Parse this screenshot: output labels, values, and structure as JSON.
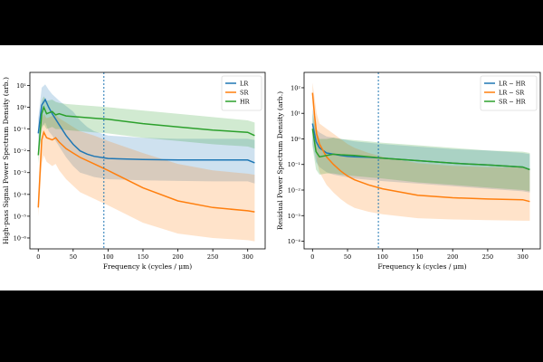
{
  "chart_data": [
    {
      "type": "line",
      "log_y": true,
      "ylabel": "High-pass Signal Power Spectrum Density (arb.)",
      "xlabel": "Frequency k (cycles / μm)",
      "xlim": [
        -12,
        325
      ],
      "ylim_exponent": [
        -6.5,
        1.6
      ],
      "x_ticks": [
        "0",
        "50",
        "100",
        "150",
        "200",
        "250",
        "300"
      ],
      "y_tick_exponents": [
        1,
        0,
        -1,
        -2,
        -3,
        -4,
        -5,
        -6
      ],
      "vline_x": 94,
      "legend": "top-right",
      "series": [
        {
          "name": "LR",
          "color": "#1f77b4",
          "x": [
            0,
            5,
            10,
            15,
            20,
            30,
            40,
            50,
            60,
            70,
            80,
            100,
            150,
            200,
            250,
            300,
            310
          ],
          "log_mean": [
            -1.2,
            0.1,
            0.35,
            0.0,
            -0.3,
            -0.8,
            -1.3,
            -1.7,
            -2.0,
            -2.15,
            -2.25,
            -2.35,
            -2.4,
            -2.42,
            -2.42,
            -2.42,
            -2.55
          ],
          "log_low": [
            -2.0,
            -0.9,
            -0.7,
            -1.1,
            -1.3,
            -1.8,
            -2.3,
            -2.7,
            -3.0,
            -3.1,
            -3.2,
            -3.3,
            -3.35,
            -3.38,
            -3.4,
            -3.4,
            -3.5
          ],
          "log_high": [
            -0.5,
            0.9,
            1.05,
            0.8,
            0.6,
            0.3,
            0.05,
            -0.2,
            -0.6,
            -0.9,
            -1.1,
            -1.3,
            -1.4,
            -1.45,
            -1.45,
            -1.45,
            -1.5
          ]
        },
        {
          "name": "SR",
          "color": "#ff7f0e",
          "x": [
            0,
            5,
            8,
            12,
            20,
            25,
            30,
            40,
            50,
            60,
            80,
            100,
            150,
            200,
            250,
            300,
            310
          ],
          "log_mean": [
            -4.6,
            -1.5,
            -1.15,
            -1.4,
            -1.5,
            -1.4,
            -1.6,
            -1.9,
            -2.1,
            -2.3,
            -2.6,
            -2.9,
            -3.7,
            -4.3,
            -4.6,
            -4.75,
            -4.8
          ],
          "log_low": [
            -5.0,
            -2.6,
            -2.2,
            -2.5,
            -2.7,
            -2.6,
            -2.9,
            -3.3,
            -3.6,
            -3.9,
            -4.2,
            -4.5,
            -5.3,
            -5.8,
            -6.0,
            -6.1,
            -6.15
          ],
          "log_high": [
            -4.0,
            -0.6,
            -0.3,
            -0.5,
            -0.4,
            -0.35,
            -0.5,
            -0.7,
            -0.9,
            -1.1,
            -1.3,
            -1.55,
            -2.1,
            -2.6,
            -2.9,
            -3.05,
            -3.1
          ]
        },
        {
          "name": "HR",
          "color": "#2ca02c",
          "x": [
            0,
            5,
            8,
            12,
            20,
            25,
            30,
            40,
            60,
            80,
            100,
            150,
            200,
            250,
            300,
            310
          ],
          "log_mean": [
            -2.2,
            -0.3,
            0.0,
            -0.3,
            -0.2,
            -0.35,
            -0.3,
            -0.4,
            -0.45,
            -0.5,
            -0.55,
            -0.75,
            -0.9,
            -1.05,
            -1.15,
            -1.3
          ],
          "log_low": [
            -2.6,
            -1.0,
            -0.8,
            -1.0,
            -0.9,
            -1.0,
            -1.0,
            -1.05,
            -1.1,
            -1.15,
            -1.2,
            -1.4,
            -1.55,
            -1.7,
            -1.8,
            -1.9
          ],
          "log_high": [
            -1.8,
            0.3,
            0.5,
            0.3,
            0.35,
            0.25,
            0.2,
            0.15,
            0.1,
            0.05,
            0.0,
            -0.15,
            -0.3,
            -0.45,
            -0.6,
            -0.7
          ]
        }
      ]
    },
    {
      "type": "line",
      "log_y": true,
      "ylabel": "Residual Power Spectrum Density (arb.)",
      "xlabel": "Frequency k (cycles / μm)",
      "xlim": [
        -12,
        325
      ],
      "ylim_exponent": [
        -4.3,
        2.6
      ],
      "x_ticks": [
        "0",
        "50",
        "100",
        "150",
        "200",
        "250",
        "300"
      ],
      "y_tick_exponents": [
        2,
        1,
        0,
        -1,
        -2,
        -3,
        -4
      ],
      "vline_x": 94,
      "legend": "top-right",
      "series": [
        {
          "name": "LR − HR",
          "color": "#1f77b4",
          "x": [
            0,
            5,
            10,
            20,
            30,
            40,
            50,
            60,
            80,
            100,
            150,
            200,
            250,
            300,
            310
          ],
          "log_mean": [
            0.6,
            -0.1,
            -0.35,
            -0.55,
            -0.6,
            -0.65,
            -0.68,
            -0.7,
            -0.72,
            -0.75,
            -0.85,
            -0.95,
            -1.02,
            -1.1,
            -1.2
          ],
          "log_low": [
            -0.2,
            -0.9,
            -1.1,
            -1.3,
            -1.4,
            -1.45,
            -1.5,
            -1.55,
            -1.6,
            -1.65,
            -1.75,
            -1.85,
            -1.95,
            -2.05,
            -2.1
          ],
          "log_high": [
            1.2,
            0.4,
            0.25,
            0.1,
            0.05,
            0.0,
            -0.05,
            -0.1,
            -0.15,
            -0.2,
            -0.3,
            -0.4,
            -0.45,
            -0.55,
            -0.6
          ]
        },
        {
          "name": "LR − SR",
          "color": "#ff7f0e",
          "x": [
            0,
            3,
            6,
            10,
            20,
            30,
            40,
            50,
            60,
            80,
            100,
            150,
            200,
            250,
            300,
            310
          ],
          "log_mean": [
            1.8,
            0.9,
            0.2,
            -0.2,
            -0.7,
            -1.0,
            -1.25,
            -1.45,
            -1.6,
            -1.8,
            -1.95,
            -2.2,
            -2.3,
            -2.35,
            -2.38,
            -2.45
          ],
          "log_low": [
            1.4,
            0.2,
            -0.8,
            -1.3,
            -1.8,
            -2.1,
            -2.35,
            -2.55,
            -2.7,
            -2.85,
            -2.95,
            -3.1,
            -3.15,
            -3.18,
            -3.2,
            -3.2
          ],
          "log_high": [
            2.2,
            1.6,
            1.0,
            0.6,
            0.4,
            0.2,
            0.0,
            -0.2,
            -0.35,
            -0.55,
            -0.7,
            -0.95,
            -1.05,
            -1.1,
            -1.12,
            -1.15
          ]
        },
        {
          "name": "SR − HR",
          "color": "#2ca02c",
          "x": [
            0,
            5,
            10,
            20,
            30,
            40,
            60,
            80,
            100,
            150,
            200,
            250,
            300,
            310
          ],
          "log_mean": [
            0.4,
            -0.5,
            -0.7,
            -0.65,
            -0.6,
            -0.62,
            -0.65,
            -0.7,
            -0.75,
            -0.85,
            -0.95,
            -1.02,
            -1.1,
            -1.2
          ],
          "log_low": [
            -0.3,
            -1.2,
            -1.4,
            -1.35,
            -1.35,
            -1.4,
            -1.45,
            -1.5,
            -1.55,
            -1.7,
            -1.8,
            -1.9,
            -2.0,
            -2.05
          ],
          "log_high": [
            1.0,
            0.3,
            0.0,
            0.0,
            0.05,
            0.0,
            -0.05,
            -0.1,
            -0.15,
            -0.25,
            -0.35,
            -0.45,
            -0.5,
            -0.55
          ]
        }
      ]
    }
  ]
}
